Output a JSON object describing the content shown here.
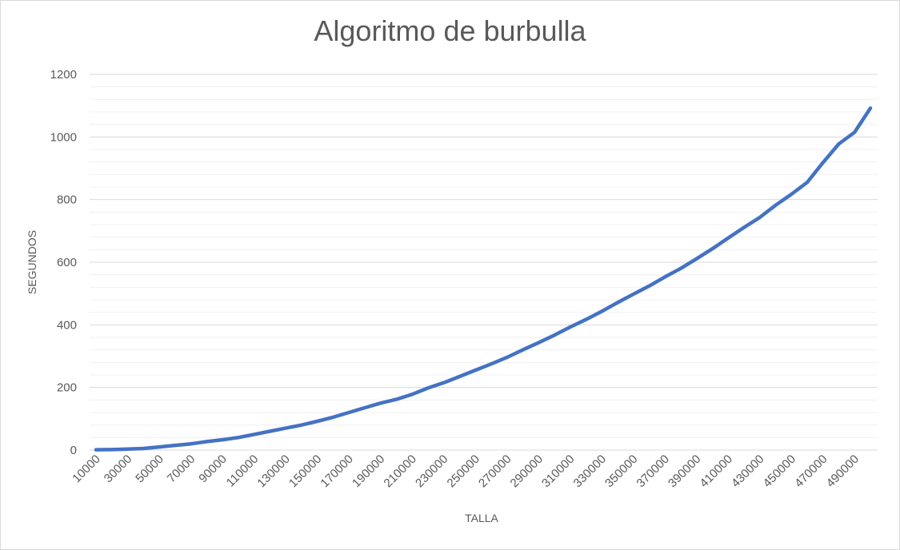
{
  "chart_data": {
    "type": "line",
    "title": "Algoritmo de burbulla",
    "xlabel": "TALLA",
    "ylabel": "SEGUNDOS",
    "ylim": [
      0,
      1200
    ],
    "y_major_ticks": [
      0,
      200,
      400,
      600,
      800,
      1000,
      1200
    ],
    "y_minor_step": 40,
    "grid": true,
    "legend": "none",
    "line_color": "#4472C4",
    "x_tick_labels": [
      "10000",
      "30000",
      "50000",
      "70000",
      "90000",
      "110000",
      "130000",
      "150000",
      "170000",
      "190000",
      "210000",
      "230000",
      "250000",
      "270000",
      "290000",
      "310000",
      "330000",
      "350000",
      "370000",
      "390000",
      "410000",
      "430000",
      "450000",
      "470000",
      "490000"
    ],
    "x": [
      10000,
      20000,
      30000,
      40000,
      50000,
      60000,
      70000,
      80000,
      90000,
      100000,
      110000,
      120000,
      130000,
      140000,
      150000,
      160000,
      170000,
      180000,
      190000,
      200000,
      210000,
      220000,
      230000,
      240000,
      250000,
      260000,
      270000,
      280000,
      290000,
      300000,
      310000,
      320000,
      330000,
      340000,
      350000,
      360000,
      370000,
      380000,
      390000,
      400000,
      410000,
      420000,
      430000,
      440000,
      450000,
      460000,
      470000,
      480000,
      490000,
      500000
    ],
    "series": [
      {
        "values": [
          1,
          1.5,
          3,
          5,
          10,
          15,
          20,
          27,
          33,
          40,
          50,
          60,
          70,
          80,
          92,
          105,
          120,
          135,
          150,
          162,
          178,
          198,
          215,
          235,
          255,
          275,
          296,
          320,
          343,
          367,
          393,
          417,
          443,
          471,
          498,
          524,
          553,
          580,
          611,
          643,
          677,
          711,
          743,
          782,
          817,
          855,
          918,
          978,
          1015,
          1092
        ]
      }
    ]
  }
}
